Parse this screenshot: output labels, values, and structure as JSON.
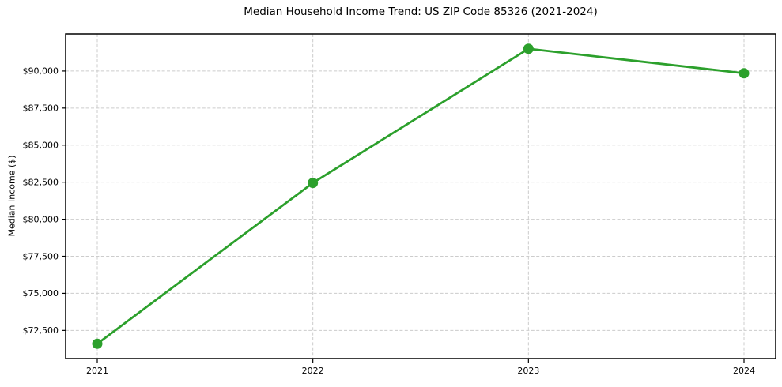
{
  "chart_data": {
    "type": "line",
    "title": "Median Household Income Trend: US ZIP Code 85326 (2021-2024)",
    "xlabel": "",
    "ylabel": "Median Income ($)",
    "categories": [
      "2021",
      "2022",
      "2023",
      "2024"
    ],
    "series": [
      {
        "name": "Median Household Income",
        "values": [
          71600,
          82450,
          91500,
          89850
        ],
        "color": "#2ca02c",
        "marker": "circle"
      }
    ],
    "yticks": [
      {
        "value": 72500,
        "label": "$72,500"
      },
      {
        "value": 75000,
        "label": "$75,000"
      },
      {
        "value": 77500,
        "label": "$77,500"
      },
      {
        "value": 80000,
        "label": "$80,000"
      },
      {
        "value": 82500,
        "label": "$82,500"
      },
      {
        "value": 85000,
        "label": "$85,000"
      },
      {
        "value": 87500,
        "label": "$87,500"
      },
      {
        "value": 90000,
        "label": "$90,000"
      }
    ],
    "ylim": [
      70600,
      92500
    ],
    "grid": true,
    "grid_style": "dashed",
    "legend_position": "none",
    "colors": {
      "line": "#2ca02c",
      "grid": "#cccccc",
      "spine": "#000000",
      "text": "#000000",
      "background": "#ffffff"
    }
  }
}
